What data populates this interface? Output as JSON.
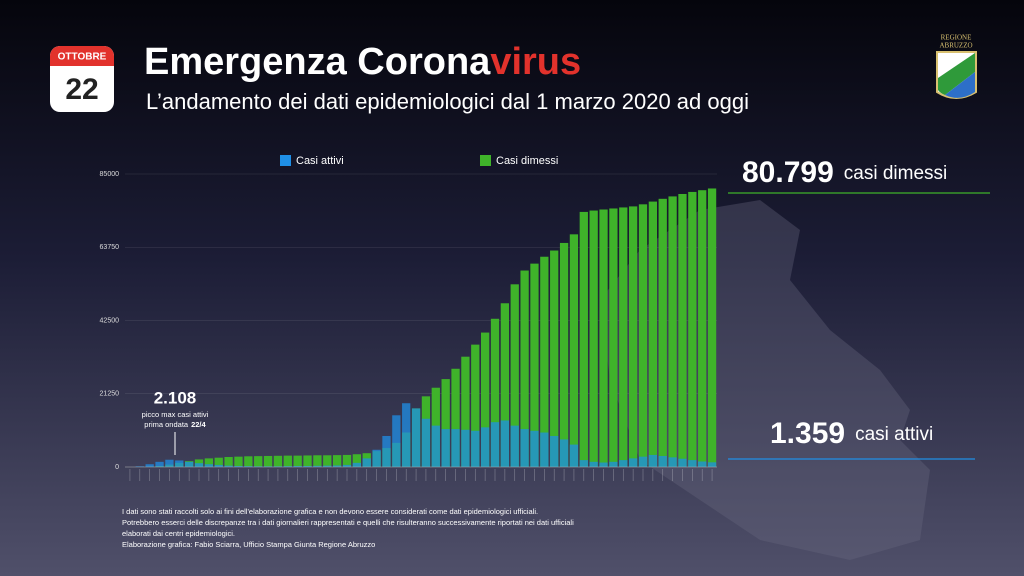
{
  "calendar": {
    "month": "OTTOBRE",
    "day": "22"
  },
  "logo": {
    "line1": "REGIONE",
    "line2": "ABRUZZO"
  },
  "chart_data": {
    "type": "bar",
    "title": {
      "text": "Emergenza Corona",
      "highlight": "virus"
    },
    "subtitle": "L’andamento dei dati epidemiologici dal 1 marzo 2020 ad oggi",
    "categories": [
      null,
      null,
      null,
      null,
      null,
      null,
      null,
      null,
      null,
      null,
      null,
      null,
      null,
      null,
      null,
      null,
      null,
      null,
      null,
      null,
      null,
      null,
      null,
      null,
      null,
      null,
      null,
      null,
      null,
      null,
      null,
      null,
      null,
      null,
      null,
      null,
      null,
      null,
      null,
      null,
      null,
      null,
      null,
      null,
      null,
      null,
      null,
      null,
      null,
      null,
      null,
      null,
      null,
      null,
      null,
      null,
      null,
      null,
      null,
      null
    ],
    "series": [
      {
        "name": "Casi dimessi",
        "color": "#3fb32a",
        "values": [
          0,
          0,
          100,
          300,
          700,
          1200,
          1700,
          2200,
          2500,
          2700,
          2900,
          3000,
          3100,
          3150,
          3200,
          3250,
          3300,
          3300,
          3350,
          3400,
          3400,
          3450,
          3500,
          3700,
          4000,
          4600,
          5500,
          7000,
          10000,
          17000,
          20500,
          23000,
          25500,
          28500,
          32000,
          35500,
          39000,
          43000,
          47500,
          53000,
          57000,
          59000,
          61000,
          62800,
          65000,
          67500,
          74000,
          74400,
          74700,
          75000,
          75300,
          75600,
          76200,
          77000,
          77800,
          78500,
          79200,
          79800,
          80300,
          80799
        ]
      },
      {
        "name": "Casi attivi",
        "color": "#1f8fe6",
        "values": [
          0,
          200,
          800,
          1500,
          2108,
          1900,
          1500,
          1100,
          800,
          600,
          400,
          300,
          250,
          200,
          200,
          200,
          250,
          300,
          300,
          350,
          400,
          450,
          600,
          1200,
          2500,
          5000,
          9000,
          15000,
          18500,
          17000,
          14000,
          12000,
          11000,
          11000,
          10800,
          10500,
          11500,
          13000,
          13500,
          12000,
          11000,
          10500,
          10000,
          9000,
          8000,
          6500,
          2000,
          1500,
          1300,
          1500,
          2000,
          2500,
          3000,
          3500,
          3200,
          2800,
          2400,
          2000,
          1600,
          1359
        ]
      }
    ],
    "ylim": [
      0,
      85000
    ],
    "yticks": [
      0,
      21250,
      42500,
      63750,
      85000
    ],
    "grid": true,
    "legend": "top",
    "annotations": [
      {
        "value": "80.799",
        "text": "casi dimessi"
      },
      {
        "value": "1.359",
        "text": "casi attivi"
      },
      {
        "value": "2.108",
        "line1": "picco max casi attivi",
        "line2": "prima ondata",
        "date": "22/4"
      }
    ],
    "notes": [
      "I dati sono stati raccolti solo ai fini dell'elaborazione grafica e non devono essere considerati come dati epidemiologici ufficiali.",
      "Potrebbero esserci delle discrepanze tra i dati giornalieri rappresentati e quelli che risulteranno successivamente riportati nei dati ufficiali",
      "elaborati dai centri epidemiologici.",
      "Elaborazione grafica: Fabio Sciarra, Ufficio Stampa Giunta Regione Abruzzo"
    ]
  }
}
